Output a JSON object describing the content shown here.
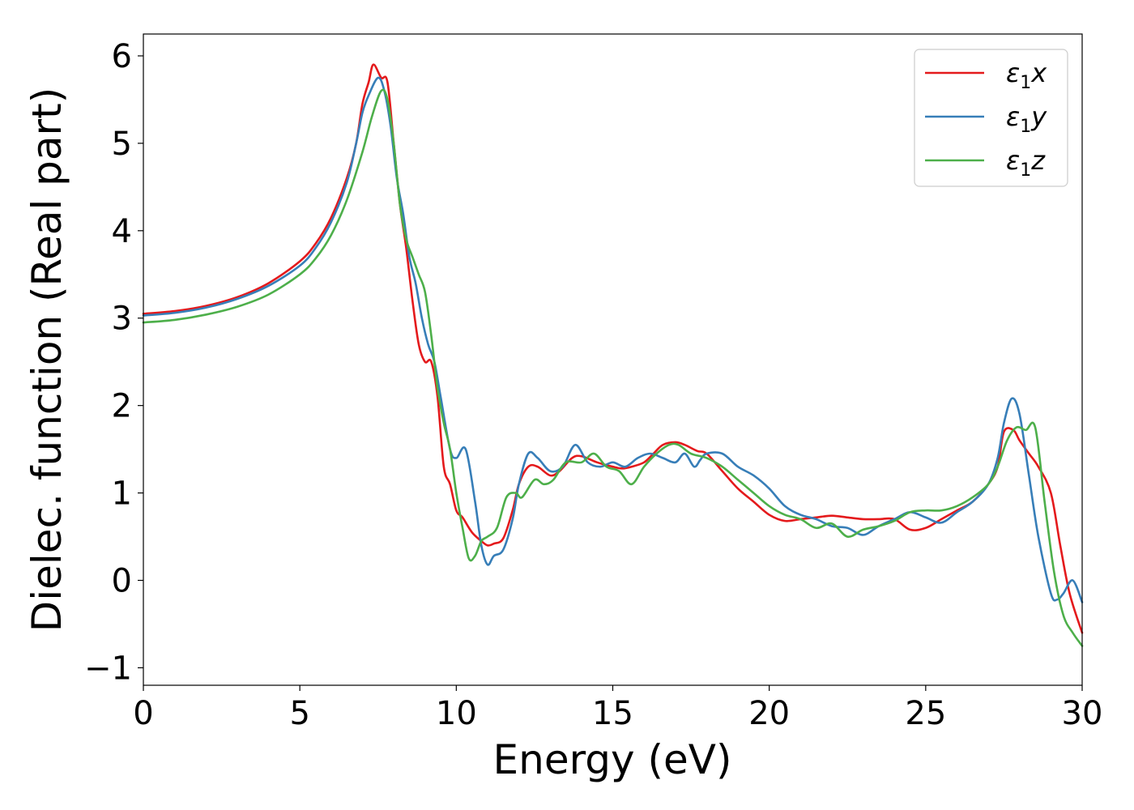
{
  "chart_data": {
    "type": "line",
    "xlabel": "Energy (eV)",
    "ylabel": "Dielec. function (Real part)",
    "xlim": [
      0,
      30
    ],
    "ylim": [
      -1.2,
      6.25
    ],
    "xticks": [
      0,
      5,
      10,
      15,
      20,
      25,
      30
    ],
    "xtick_labels": [
      "0",
      "5",
      "10",
      "15",
      "20",
      "25",
      "30"
    ],
    "yticks": [
      -1,
      0,
      1,
      2,
      3,
      4,
      5,
      6
    ],
    "ytick_labels": [
      "−1",
      "0",
      "1",
      "2",
      "3",
      "4",
      "5",
      "6"
    ],
    "grid": false,
    "legend_position": "top-right",
    "series": [
      {
        "name": "x",
        "legend_symbol": "ε",
        "legend_sub": "1",
        "color": "#e41a1c",
        "x": [
          0,
          1,
          2,
          3,
          4,
          5,
          5.5,
          6,
          6.5,
          6.8,
          7,
          7.2,
          7.35,
          7.6,
          7.8,
          8,
          8.2,
          8.4,
          8.6,
          8.8,
          9,
          9.2,
          9.4,
          9.6,
          9.8,
          10,
          10.2,
          10.5,
          10.8,
          11,
          11.2,
          11.5,
          11.8,
          12,
          12.3,
          12.6,
          13,
          13.3,
          13.7,
          14,
          14.5,
          15,
          15.3,
          15.6,
          16,
          16.3,
          16.6,
          17,
          17.3,
          17.7,
          18,
          18.5,
          19,
          19.5,
          20,
          20.5,
          21,
          21.5,
          22,
          22.5,
          23,
          23.5,
          24,
          24.5,
          25,
          25.5,
          26,
          26.5,
          27,
          27.3,
          27.5,
          27.8,
          28,
          28.3,
          28.6,
          29,
          29.3,
          29.6,
          30
        ],
        "y": [
          3.05,
          3.08,
          3.14,
          3.24,
          3.4,
          3.65,
          3.85,
          4.15,
          4.6,
          5.0,
          5.45,
          5.7,
          5.9,
          5.75,
          5.7,
          5.0,
          4.3,
          3.8,
          3.2,
          2.7,
          2.5,
          2.5,
          2.1,
          1.3,
          1.1,
          0.8,
          0.72,
          0.55,
          0.45,
          0.4,
          0.42,
          0.48,
          0.8,
          1.1,
          1.3,
          1.3,
          1.2,
          1.25,
          1.4,
          1.42,
          1.35,
          1.3,
          1.28,
          1.3,
          1.35,
          1.45,
          1.55,
          1.58,
          1.55,
          1.48,
          1.45,
          1.25,
          1.05,
          0.9,
          0.75,
          0.68,
          0.7,
          0.72,
          0.74,
          0.72,
          0.7,
          0.7,
          0.7,
          0.58,
          0.6,
          0.7,
          0.8,
          0.9,
          1.1,
          1.3,
          1.7,
          1.72,
          1.6,
          1.45,
          1.3,
          1.0,
          0.4,
          -0.15,
          -0.6
        ]
      },
      {
        "name": "y",
        "legend_symbol": "ε",
        "legend_sub": "1",
        "color": "#377eb8",
        "x": [
          0,
          1,
          2,
          3,
          4,
          5,
          5.5,
          6,
          6.5,
          6.8,
          7,
          7.2,
          7.5,
          7.7,
          7.9,
          8.1,
          8.3,
          8.5,
          8.7,
          8.9,
          9.1,
          9.3,
          9.5,
          9.8,
          10,
          10.3,
          10.6,
          10.8,
          11,
          11.2,
          11.5,
          11.8,
          12,
          12.3,
          12.6,
          13,
          13.4,
          13.8,
          14.2,
          14.6,
          15,
          15.4,
          15.8,
          16.2,
          16.6,
          17,
          17.3,
          17.6,
          17.8,
          18,
          18.5,
          19,
          19.5,
          20,
          20.5,
          21,
          21.5,
          22,
          22.5,
          23,
          23.5,
          24,
          24.5,
          25,
          25.5,
          26,
          26.5,
          27,
          27.3,
          27.5,
          27.75,
          28,
          28.3,
          28.6,
          29,
          29.2,
          29.4,
          29.7,
          30
        ],
        "y": [
          3.03,
          3.06,
          3.12,
          3.22,
          3.37,
          3.6,
          3.8,
          4.1,
          4.55,
          5.0,
          5.35,
          5.55,
          5.75,
          5.6,
          5.2,
          4.6,
          4.2,
          3.7,
          3.4,
          3.0,
          2.7,
          2.5,
          2.1,
          1.5,
          1.4,
          1.5,
          0.9,
          0.4,
          0.18,
          0.28,
          0.35,
          0.7,
          1.1,
          1.45,
          1.4,
          1.25,
          1.3,
          1.55,
          1.35,
          1.3,
          1.35,
          1.3,
          1.4,
          1.45,
          1.4,
          1.35,
          1.45,
          1.3,
          1.38,
          1.45,
          1.45,
          1.3,
          1.2,
          1.05,
          0.85,
          0.75,
          0.7,
          0.62,
          0.6,
          0.52,
          0.62,
          0.7,
          0.78,
          0.72,
          0.66,
          0.78,
          0.9,
          1.1,
          1.4,
          1.8,
          2.08,
          1.9,
          1.2,
          0.5,
          -0.15,
          -0.22,
          -0.15,
          0,
          -0.25
        ]
      },
      {
        "name": "z",
        "legend_symbol": "ε",
        "legend_sub": "1",
        "color": "#4daf4a",
        "x": [
          0,
          1,
          2,
          3,
          4,
          5,
          5.5,
          6,
          6.5,
          7,
          7.3,
          7.6,
          7.8,
          8,
          8.2,
          8.4,
          8.6,
          8.8,
          9,
          9.2,
          9.4,
          9.6,
          9.8,
          10,
          10.2,
          10.4,
          10.6,
          10.8,
          11,
          11.3,
          11.6,
          11.9,
          12.1,
          12.5,
          12.8,
          13.1,
          13.5,
          14,
          14.4,
          14.8,
          15.2,
          15.6,
          16,
          16.4,
          16.8,
          17.1,
          17.5,
          18,
          18.5,
          19,
          19.5,
          20,
          20.5,
          21,
          21.5,
          22,
          22.5,
          23,
          23.5,
          24,
          24.5,
          25,
          25.5,
          26,
          26.5,
          27,
          27.3,
          27.6,
          27.9,
          28.2,
          28.5,
          28.8,
          29.1,
          29.4,
          29.7,
          30
        ],
        "y": [
          2.95,
          2.98,
          3.04,
          3.13,
          3.27,
          3.5,
          3.68,
          3.95,
          4.35,
          4.9,
          5.3,
          5.6,
          5.5,
          5.0,
          4.3,
          3.9,
          3.7,
          3.5,
          3.3,
          2.8,
          2.2,
          1.8,
          1.5,
          1.0,
          0.6,
          0.25,
          0.28,
          0.45,
          0.5,
          0.6,
          0.95,
          1.0,
          0.95,
          1.15,
          1.1,
          1.15,
          1.35,
          1.35,
          1.45,
          1.3,
          1.25,
          1.1,
          1.3,
          1.45,
          1.55,
          1.55,
          1.45,
          1.4,
          1.3,
          1.15,
          1.0,
          0.85,
          0.75,
          0.7,
          0.6,
          0.65,
          0.5,
          0.58,
          0.62,
          0.68,
          0.78,
          0.8,
          0.8,
          0.85,
          0.95,
          1.1,
          1.3,
          1.6,
          1.75,
          1.72,
          1.75,
          0.9,
          0.1,
          -0.4,
          -0.6,
          -0.75
        ]
      }
    ]
  }
}
